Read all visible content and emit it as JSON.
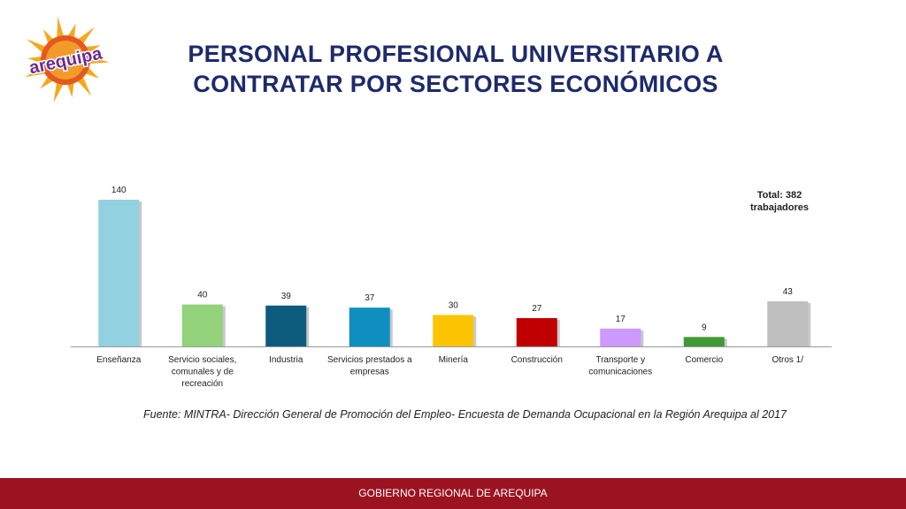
{
  "logo": {
    "text": "arequipa",
    "colors": {
      "sun": "#f6a81c",
      "sun_inner": "#e5581f",
      "text": "#6b2c91"
    }
  },
  "header": {
    "title": "PERSONAL PROFESIONAL UNIVERSITARIO A CONTRATAR POR SECTORES ECONÓMICOS"
  },
  "chart_data": {
    "type": "bar",
    "categories": [
      [
        "Enseñanza"
      ],
      [
        "Servicio sociales,",
        "comunales y de",
        "recreación"
      ],
      [
        "Industria"
      ],
      [
        "Servicios prestados a",
        "empresas"
      ],
      [
        "Minería"
      ],
      [
        "Construcción"
      ],
      [
        "Transporte y",
        "comunicaciones"
      ],
      [
        "Comercio"
      ],
      [
        "Otros 1/"
      ]
    ],
    "values": [
      140,
      40,
      39,
      37,
      30,
      27,
      17,
      9,
      43
    ],
    "colors": [
      "#92d1df",
      "#92d27a",
      "#0d5c7e",
      "#0e8fc0",
      "#fbc400",
      "#c00000",
      "#cc99ff",
      "#3f9a36",
      "#bfbfbf"
    ],
    "ylim": [
      0,
      150
    ],
    "grid": false,
    "annotation": [
      "Total: 382",
      "trabajadores"
    ]
  },
  "source": "Fuente: MINTRA- Dirección General de Promoción del Empleo- Encuesta de Demanda Ocupacional en la Región Arequipa al 2017",
  "footer": {
    "text": "GOBIERNO REGIONAL DE AREQUIPA",
    "color": "#9b1321"
  }
}
